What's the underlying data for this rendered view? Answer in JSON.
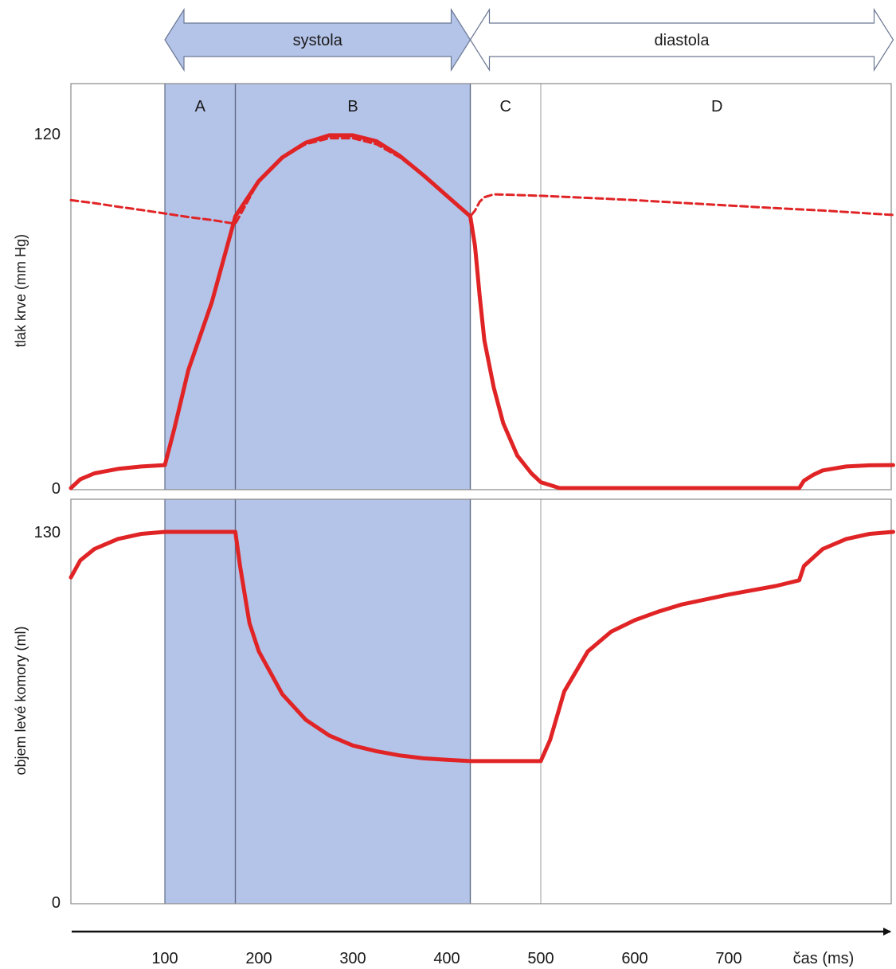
{
  "phases": {
    "systole_label": "systola",
    "diastole_label": "diastola",
    "segments": [
      {
        "label": "A",
        "start": 100,
        "end": 175,
        "shaded": true
      },
      {
        "label": "B",
        "start": 175,
        "end": 425,
        "shaded": true
      },
      {
        "label": "C",
        "start": 425,
        "end": 500,
        "shaded": false
      },
      {
        "label": "D",
        "start": 500,
        "end": 875,
        "shaded": false
      }
    ]
  },
  "colors": {
    "shade": "#b4c3e8",
    "shade_arrow": "#b4c3e8",
    "curve": "#e02426",
    "frame": "#888888",
    "divider": "#5f6b86"
  },
  "chart_data": [
    {
      "type": "line",
      "ylabel": "tlak krve (mm Hg)",
      "xlim": [
        0,
        875
      ],
      "ylim": [
        0,
        120
      ],
      "yticks": [
        {
          "value": 0,
          "label": "0"
        },
        {
          "value": 120,
          "label": "120"
        }
      ],
      "series": [
        {
          "style": "solid",
          "x": [
            0,
            10,
            25,
            50,
            75,
            100,
            110,
            125,
            150,
            175,
            200,
            225,
            250,
            275,
            300,
            325,
            350,
            375,
            400,
            425,
            430,
            435,
            440,
            450,
            460,
            475,
            490,
            500,
            510,
            520,
            540,
            600,
            700,
            775,
            780,
            790,
            800,
            825,
            850,
            875
          ],
          "y": [
            0,
            3,
            5,
            6.5,
            7.3,
            7.8,
            20,
            40,
            63,
            92,
            104,
            112,
            117,
            119.5,
            119.5,
            117.5,
            112.5,
            106,
            99,
            92,
            82,
            65,
            50,
            34,
            22,
            11,
            5,
            2,
            1,
            0,
            0,
            0,
            0,
            0,
            2.5,
            4.5,
            6,
            7.3,
            7.7,
            7.8
          ]
        },
        {
          "style": "dashed",
          "x": [
            0,
            25,
            50,
            75,
            100,
            125,
            150,
            175,
            200,
            225,
            250,
            275,
            300,
            325,
            350,
            375,
            400,
            425,
            430,
            435,
            440,
            450,
            500,
            550,
            600,
            650,
            700,
            750,
            800,
            850,
            875
          ],
          "y": [
            97.5,
            96.5,
            95.3,
            94.2,
            93,
            91.8,
            90.8,
            89.5,
            104,
            112,
            116.5,
            118.5,
            118.5,
            116.5,
            112,
            106,
            99,
            92,
            94,
            97,
            98.5,
            99.5,
            99,
            98.3,
            97.5,
            96.6,
            95.7,
            94.8,
            94,
            93,
            92.5
          ]
        }
      ]
    },
    {
      "type": "line",
      "ylabel": "objem levé komory (ml)",
      "xlabel": "čas (ms)",
      "xlim": [
        0,
        875
      ],
      "ylim": [
        0,
        130
      ],
      "yticks": [
        {
          "value": 0,
          "label": "0"
        },
        {
          "value": 130,
          "label": "130"
        }
      ],
      "xticks": [
        {
          "value": 100,
          "label": "100"
        },
        {
          "value": 200,
          "label": "200"
        },
        {
          "value": 300,
          "label": "300"
        },
        {
          "value": 400,
          "label": "400"
        },
        {
          "value": 500,
          "label": "500"
        },
        {
          "value": 600,
          "label": "600"
        },
        {
          "value": 700,
          "label": "700"
        }
      ],
      "series": [
        {
          "style": "solid",
          "x": [
            0,
            10,
            25,
            50,
            75,
            100,
            175,
            180,
            190,
            200,
            225,
            250,
            275,
            300,
            325,
            350,
            375,
            400,
            425,
            500,
            510,
            525,
            550,
            575,
            600,
            625,
            650,
            700,
            750,
            775,
            780,
            800,
            825,
            850,
            875
          ],
          "y": [
            114,
            120,
            124,
            127.5,
            129.3,
            130,
            130,
            118,
            98,
            88,
            73,
            64,
            58.5,
            55,
            53,
            51.5,
            50.5,
            50,
            49.5,
            49.5,
            57,
            74,
            88,
            95,
            99,
            102,
            104.5,
            108,
            111,
            113,
            118,
            124,
            127.5,
            129.3,
            130
          ]
        }
      ]
    }
  ]
}
